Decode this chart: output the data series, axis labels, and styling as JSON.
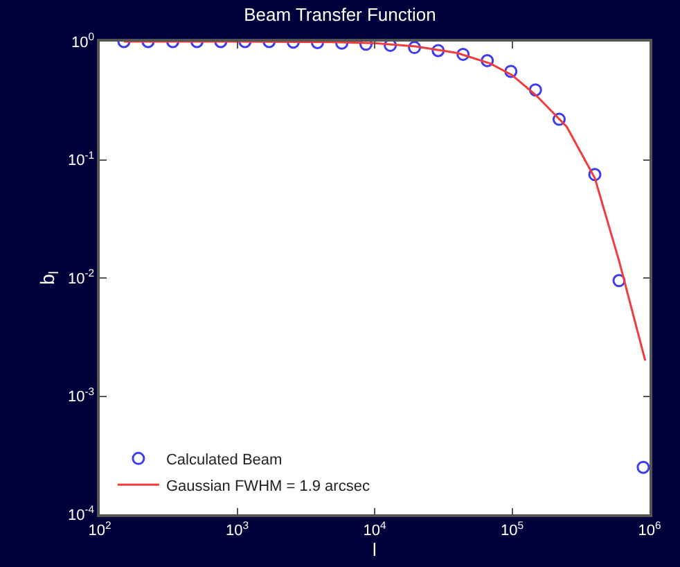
{
  "chart_data": {
    "type": "scatter",
    "title": "Beam Transfer Function",
    "xlabel": "l",
    "ylabel": "b$_{l}$",
    "log": "xy",
    "grid": false,
    "legend": "bottom left",
    "xlim": [
      100,
      1000000
    ],
    "ylim": [
      0.0001,
      1
    ],
    "xticks": [
      {
        "value": 100,
        "label": "10$^{2}$"
      },
      {
        "value": 1000,
        "label": "10$^{3}$"
      },
      {
        "value": 10000,
        "label": "10$^{4}$"
      },
      {
        "value": 100000,
        "label": "10$^{5}$"
      },
      {
        "value": 1000000,
        "label": "10$^{6}$"
      }
    ],
    "yticks": [
      {
        "value": 0.0001,
        "label": "10$^{-4}$"
      },
      {
        "value": 0.001,
        "label": "10$^{-3}$"
      },
      {
        "value": 0.01,
        "label": "10$^{-2}$"
      },
      {
        "value": 0.1,
        "label": "10$^{-1}$"
      },
      {
        "value": 1,
        "label": "10$^{0}$"
      }
    ],
    "series": [
      {
        "name": "Calculated Beam",
        "marker": "circle",
        "color": "#3c3cf0",
        "x": [
          150,
          225,
          340,
          510,
          760,
          1140,
          1710,
          2560,
          3840,
          5770,
          8650,
          13000,
          19500,
          29000,
          44000,
          66000,
          98000,
          148000,
          220000,
          400000,
          600000,
          900000
        ],
        "values": [
          1,
          1,
          1,
          1,
          1,
          1,
          1,
          0.99,
          0.98,
          0.97,
          0.95,
          0.93,
          0.89,
          0.84,
          0.78,
          0.69,
          0.56,
          0.39,
          0.22,
          0.075,
          0.0095,
          0.00025
        ]
      },
      {
        "name": "Gaussian FWHM = 1.9 arcsec",
        "type": "line",
        "marker": "none",
        "line_style": "solid",
        "color": "#f03c3c",
        "x": [
          150,
          1000,
          5000,
          10000,
          20000,
          40000,
          70000,
          100000,
          150000,
          250000,
          400000,
          600000,
          930000
        ],
        "values": [
          1,
          1,
          0.99,
          0.97,
          0.91,
          0.8,
          0.65,
          0.52,
          0.35,
          0.19,
          0.07,
          0.014,
          0.002
        ]
      }
    ]
  }
}
